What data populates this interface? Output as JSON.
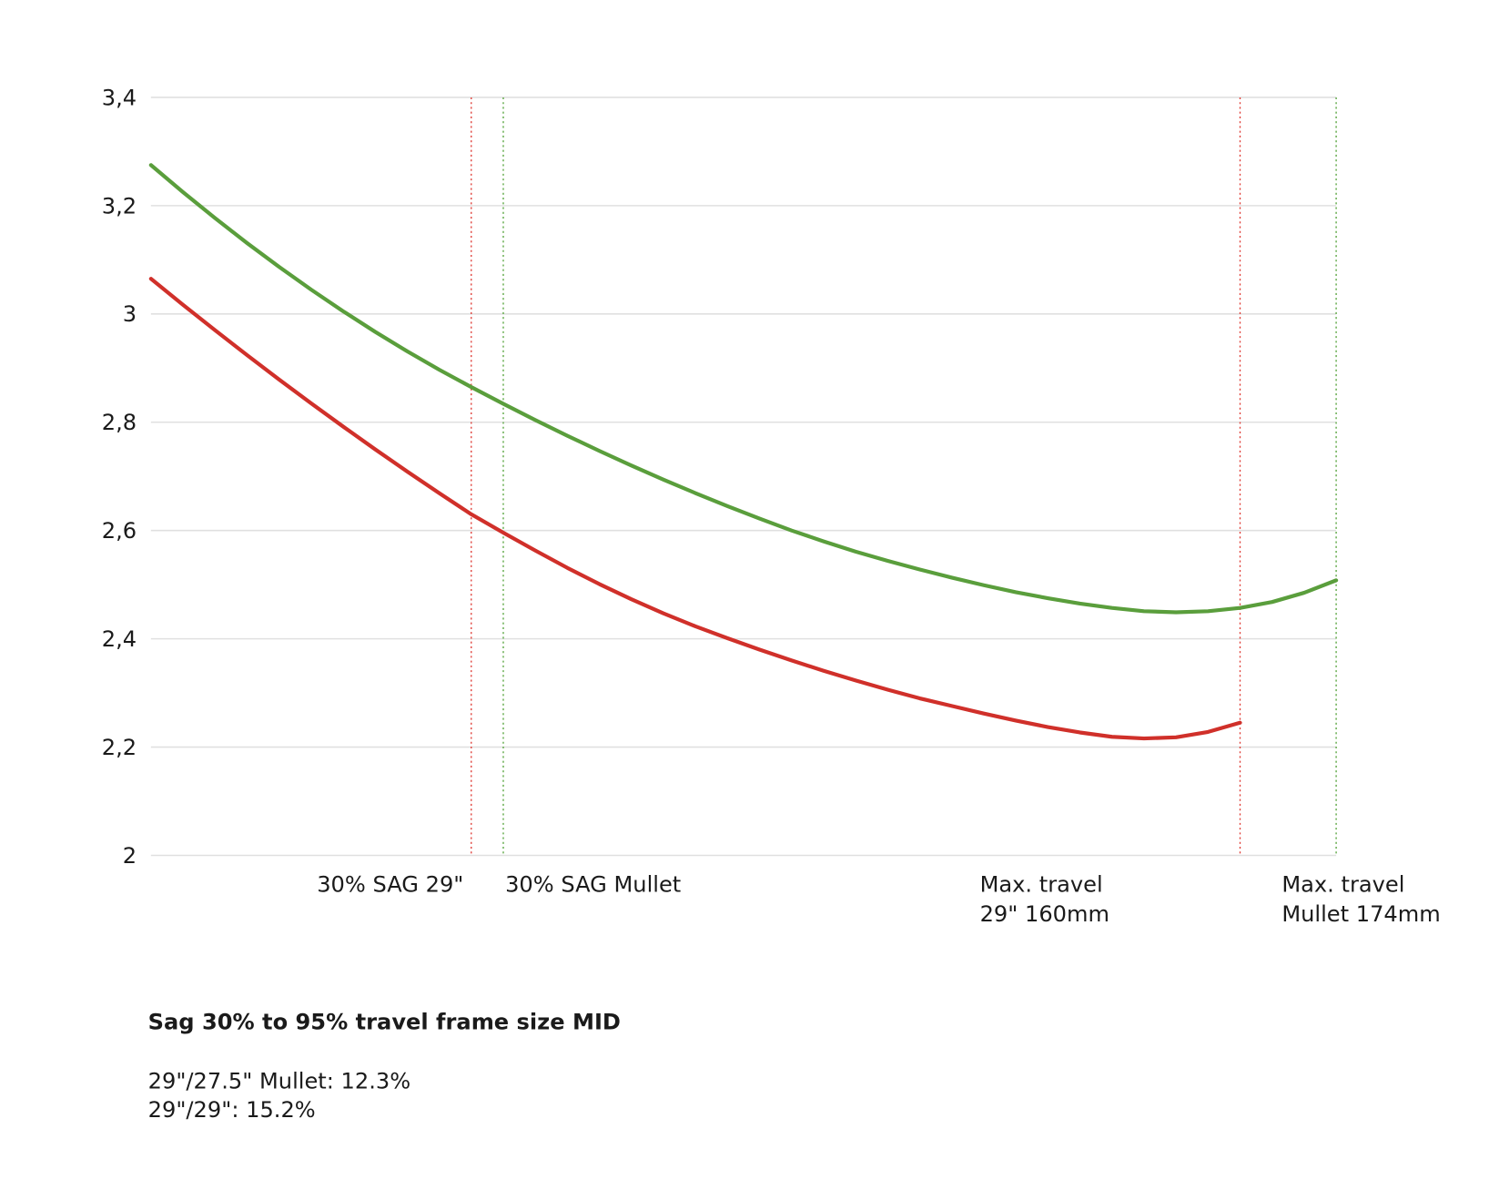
{
  "chart_data": {
    "type": "line",
    "categories": [
      null,
      null,
      null,
      null,
      null,
      null,
      null,
      null,
      null,
      null,
      "30% SAG 29\"",
      "30% SAG Mullet",
      null,
      null,
      null,
      null,
      null,
      null,
      null,
      null,
      null,
      null,
      null,
      null,
      null,
      null,
      null,
      null,
      null,
      null,
      null,
      null,
      null,
      null,
      "Max. travel\n29\" 160mm",
      null,
      null,
      "Max. travel\nMullet 174mm"
    ],
    "category_colors": [
      null,
      null,
      null,
      null,
      null,
      null,
      null,
      null,
      null,
      null,
      "#e0403a",
      "#5aa640",
      null,
      null,
      null,
      null,
      null,
      null,
      null,
      null,
      null,
      null,
      null,
      null,
      null,
      null,
      null,
      null,
      null,
      null,
      null,
      null,
      null,
      null,
      "#e0403a",
      null,
      null,
      "#5aa640"
    ],
    "series": [
      {
        "color": "#5a9e3c",
        "values": [
          3.275,
          3.225,
          3.177,
          3.131,
          3.087,
          3.045,
          3.005,
          2.967,
          2.931,
          2.897,
          2.865,
          2.834,
          2.804,
          2.775,
          2.747,
          2.72,
          2.694,
          2.669,
          2.645,
          2.622,
          2.6,
          2.58,
          2.561,
          2.544,
          2.528,
          2.513,
          2.499,
          2.486,
          2.475,
          2.465,
          2.457,
          2.451,
          2.449,
          2.451,
          2.457,
          2.468,
          2.485,
          2.508
        ]
      },
      {
        "color": "#d0302a",
        "values": [
          3.065,
          3.017,
          2.97,
          2.924,
          2.879,
          2.835,
          2.792,
          2.75,
          2.709,
          2.669,
          2.63,
          2.596,
          2.563,
          2.531,
          2.501,
          2.473,
          2.447,
          2.423,
          2.401,
          2.38,
          2.36,
          2.341,
          2.323,
          2.306,
          2.29,
          2.276,
          2.262,
          2.249,
          2.237,
          2.227,
          2.219,
          2.216,
          2.218,
          2.228,
          2.245,
          null,
          null,
          null
        ]
      }
    ],
    "ylim": [
      2,
      3.4
    ],
    "yticks": [
      2,
      {
        "value": 2.2,
        "label": "2,2"
      },
      {
        "value": 2.4,
        "label": "2,4"
      },
      {
        "value": 2.6,
        "label": "2,6"
      },
      {
        "value": 2.8,
        "label": "2,8"
      },
      3,
      {
        "value": 3.2,
        "label": "3,2"
      },
      {
        "value": 3.4,
        "label": "3,4"
      }
    ],
    "grid": true,
    "caption": "Sag 30% to 95% travel frame size MID",
    "notes": [
      "29\"/27.5\" Mullet: 12.3%",
      "29\"/29\": 15.2%"
    ]
  }
}
